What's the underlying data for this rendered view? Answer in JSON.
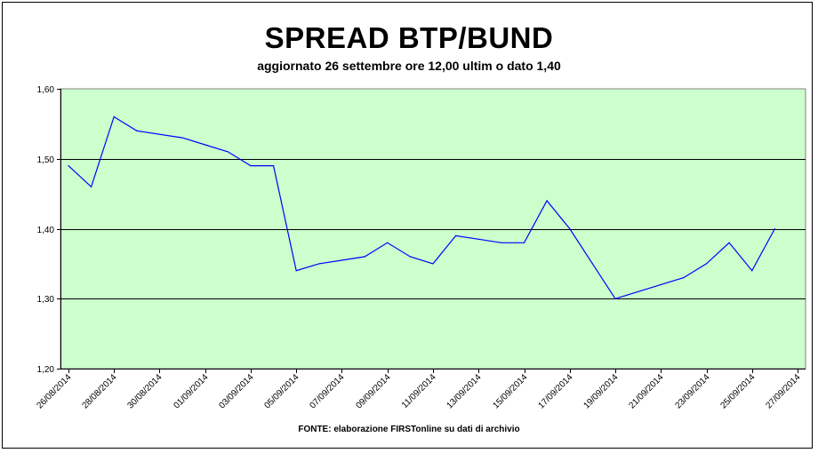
{
  "chart_data": {
    "type": "line",
    "title": "SPREAD BTP/BUND",
    "subtitle": "aggiornato 26 settembre ore 12,00 ultim o dato 1,40",
    "source": "FONTE: elaborazione FIRSTonline su dati di archivio",
    "xlabel": "",
    "ylabel": "",
    "ylim": [
      1.2,
      1.6
    ],
    "y_ticks": [
      "1,20",
      "1,30",
      "1,40",
      "1,50",
      "1,60"
    ],
    "y_tick_values": [
      1.2,
      1.3,
      1.4,
      1.5,
      1.6
    ],
    "x_range": [
      "2014-08-26",
      "2014-09-27"
    ],
    "x_ticks": [
      "26/08/2014",
      "28/08/2014",
      "30/08/2014",
      "01/09/2014",
      "03/09/2014",
      "05/09/2014",
      "07/09/2014",
      "09/09/2014",
      "11/09/2014",
      "13/09/2014",
      "15/09/2014",
      "17/09/2014",
      "19/09/2014",
      "21/09/2014",
      "23/09/2014",
      "25/09/2014",
      "27/09/2014"
    ],
    "x_tick_dates": [
      "2014-08-26",
      "2014-08-28",
      "2014-08-30",
      "2014-09-01",
      "2014-09-03",
      "2014-09-05",
      "2014-09-07",
      "2014-09-09",
      "2014-09-11",
      "2014-09-13",
      "2014-09-15",
      "2014-09-17",
      "2014-09-19",
      "2014-09-21",
      "2014-09-23",
      "2014-09-25",
      "2014-09-27"
    ],
    "grid": true,
    "plot_background": "#ccffcc",
    "series": [
      {
        "name": "",
        "color": "#0000ff",
        "x": [
          "2014-08-26",
          "2014-08-27",
          "2014-08-28",
          "2014-08-29",
          "2014-08-31",
          "2014-09-01",
          "2014-09-02",
          "2014-09-03",
          "2014-09-04",
          "2014-09-05",
          "2014-09-06",
          "2014-09-08",
          "2014-09-09",
          "2014-09-10",
          "2014-09-11",
          "2014-09-12",
          "2014-09-13",
          "2014-09-14",
          "2014-09-15",
          "2014-09-16",
          "2014-09-17",
          "2014-09-18",
          "2014-09-19",
          "2014-09-22",
          "2014-09-23",
          "2014-09-24",
          "2014-09-25",
          "2014-09-26"
        ],
        "values": [
          1.49,
          1.46,
          1.56,
          1.54,
          1.53,
          1.52,
          1.51,
          1.49,
          1.49,
          1.34,
          1.35,
          1.36,
          1.38,
          1.36,
          1.35,
          1.39,
          1.385,
          1.38,
          1.38,
          1.44,
          1.4,
          1.35,
          1.3,
          1.33,
          1.35,
          1.38,
          1.34,
          1.4
        ]
      }
    ]
  }
}
